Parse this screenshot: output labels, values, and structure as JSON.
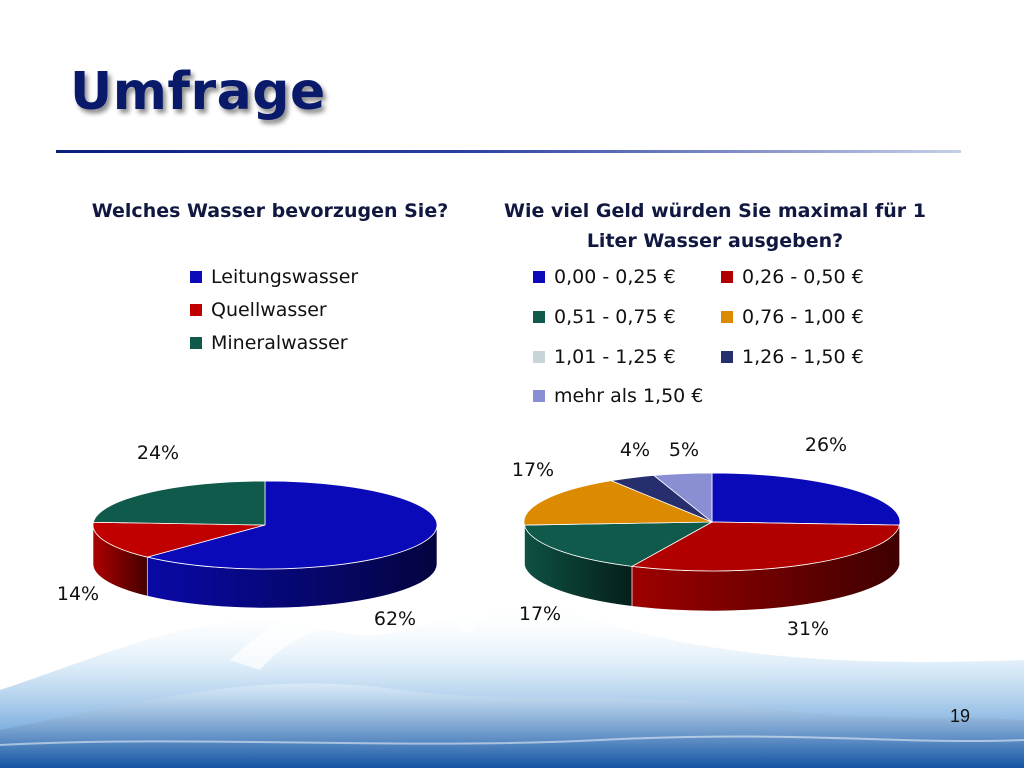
{
  "slide": {
    "title": "Umfrage",
    "page_number": "19"
  },
  "colors": {
    "title": "#0a1a6b",
    "rule": "#0b1d7a"
  },
  "chart_data": [
    {
      "type": "pie",
      "title": "Welches Wasser bevorzugen Sie?",
      "legend_position": "top",
      "categories": [
        "Leitungswasser",
        "Quellwasser",
        "Mineralwasser"
      ],
      "values": [
        62,
        14,
        24
      ],
      "labels": [
        "62%",
        "14%",
        "24%"
      ],
      "colors": [
        "#0a0ab8",
        "#c00000",
        "#0f5a4a"
      ]
    },
    {
      "type": "pie",
      "title": "Wie viel Geld würden Sie maximal für 1 Liter Wasser ausgeben?",
      "legend_position": "top",
      "categories": [
        "0,00 - 0,25 €",
        "0,26 - 0,50 €",
        "0,51 - 0,75 €",
        "0,76 - 1,00 €",
        "1,01 - 1,25 €",
        "1,26 - 1,50 €",
        "mehr als 1,50 €"
      ],
      "values": [
        26,
        31,
        17,
        17,
        0,
        4,
        5
      ],
      "labels": [
        "26%",
        "31%",
        "17%",
        "17%",
        "",
        "4%",
        "5%"
      ],
      "colors": [
        "#0a0ab8",
        "#b00000",
        "#0f5a4a",
        "#dc8a00",
        "#c8d4d8",
        "#262e6e",
        "#8a8fd4"
      ]
    }
  ]
}
